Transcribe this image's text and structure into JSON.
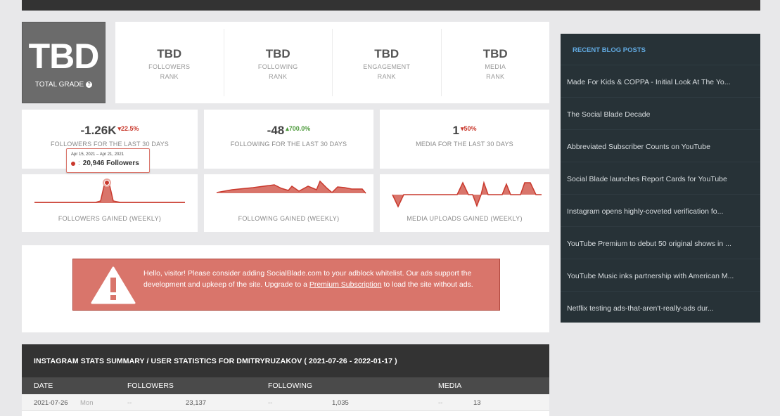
{
  "grade": {
    "value": "TBD",
    "label": "TOTAL GRADE",
    "help_icon": "question-icon"
  },
  "ranks": [
    {
      "value": "TBD",
      "line1": "FOLLOWERS",
      "line2": "RANK"
    },
    {
      "value": "TBD",
      "line1": "FOLLOWING",
      "line2": "RANK"
    },
    {
      "value": "TBD",
      "line1": "ENGAGEMENT",
      "line2": "RANK"
    },
    {
      "value": "TBD",
      "line1": "MEDIA",
      "line2": "RANK"
    }
  ],
  "stats": [
    {
      "value": "-1.26K",
      "change": "22.5%",
      "direction": "down",
      "caption": "FOLLOWERS FOR THE LAST 30 DAYS"
    },
    {
      "value": "-48",
      "change": "700.0%",
      "direction": "up",
      "caption": "FOLLOWING FOR THE LAST 30 DAYS"
    },
    {
      "value": "1",
      "change": "50%",
      "direction": "down",
      "caption": "MEDIA FOR THE LAST 30 DAYS"
    }
  ],
  "graphs": [
    {
      "caption": "FOLLOWERS GAINED (WEEKLY)"
    },
    {
      "caption": "FOLLOWING GAINED (WEEKLY)"
    },
    {
      "caption": "MEDIA UPLOADS GAINED (WEEKLY)"
    }
  ],
  "tooltip": {
    "date": "Apr 15, 2021 – Apr 21, 2021",
    "separator": ":",
    "value": "20,946 Followers"
  },
  "ad": {
    "text_before": "Hello, visitor! Please consider adding SocialBlade.com to your adblock whitelist. Our ads support the development and upkeep of the site. Upgrade to a ",
    "link": "Premium Subscription",
    "text_after": " to load the site without ads."
  },
  "summary": {
    "title": "INSTAGRAM STATS SUMMARY / USER STATISTICS FOR DMITRYRUZAKOV ( 2021-07-26 - 2022-01-17 )",
    "columns": [
      "DATE",
      "FOLLOWERS",
      "FOLLOWING",
      "MEDIA"
    ],
    "rows": [
      {
        "date": "2021-07-26",
        "day": "Mon",
        "followers_change": "--",
        "followers": "23,137",
        "following_change": "--",
        "following": "1,035",
        "media_change": "--",
        "media": "13"
      }
    ]
  },
  "sidebar": {
    "title": "RECENT BLOG POSTS",
    "posts": [
      "Made For Kids & COPPA - Initial Look At The Yo...",
      "The Social Blade Decade",
      "Abbreviated Subscriber Counts on YouTube",
      "Social Blade launches Report Cards for YouTube",
      "Instagram opens highly-coveted verification fo...",
      "YouTube Premium to debut 50 original shows in ...",
      "YouTube Music inks partnership with American M...",
      "Netflix testing ads-that-aren't-really-ads dur..."
    ]
  },
  "colors": {
    "accent_red": "#c9392d",
    "graph_fill": "#d9756b",
    "sidebar_bg": "#273237",
    "sidebar_title": "#61a9e0"
  }
}
